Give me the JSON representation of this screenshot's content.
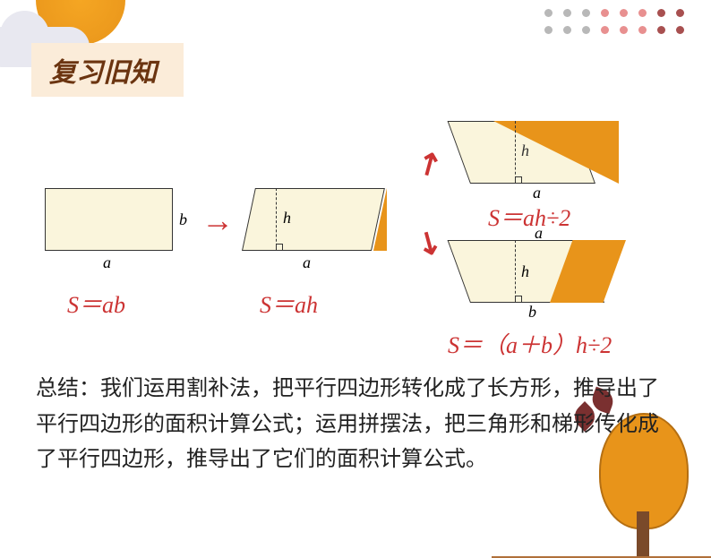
{
  "title": "复习旧知",
  "dots": {
    "colors": [
      [
        "#b8b8b8",
        "#b8b8b8",
        "#b8b8b8",
        "#e89090",
        "#e89090",
        "#e89090",
        "#a85050",
        "#a85050"
      ],
      [
        "#b8b8b8",
        "#b8b8b8",
        "#b8b8b8",
        "#e89090",
        "#e89090",
        "#e89090",
        "#a85050",
        "#a85050"
      ]
    ]
  },
  "rect": {
    "a": "a",
    "b": "b",
    "formula": "S＝ab"
  },
  "para": {
    "a": "a",
    "h": "h",
    "formula": "S＝ah"
  },
  "tri": {
    "a": "a",
    "h": "h",
    "formula": "S＝ah÷2"
  },
  "trap": {
    "a": "a",
    "b": "b",
    "h": "h",
    "formula": "S＝（a＋b）h÷2"
  },
  "summary": "总结：我们运用割补法，把平行四边形转化成了长方形，推导出了平行四边形的面积计算公式；运用拼摆法，把三角形和梯形传化成了平行四边形，推导出了它们的面积计算公式。",
  "colors": {
    "shape_fill": "#faf5dc",
    "accent_fill": "#e8941a",
    "formula_color": "#c33",
    "title_bg": "#fbecd9",
    "title_color": "#6b3410"
  }
}
